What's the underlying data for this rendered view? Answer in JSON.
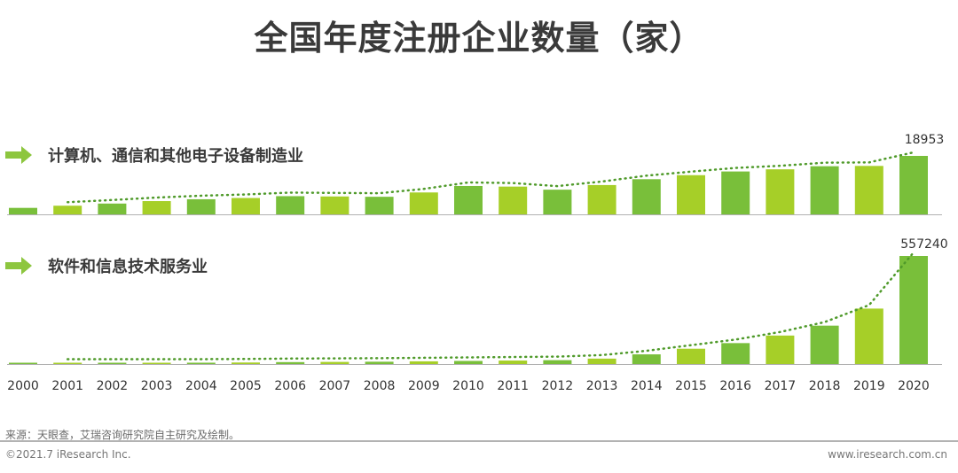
{
  "page": {
    "source_note": "来源：天眼查，艾瑞咨询研究院自主研究及绘制。",
    "copyright": "©2021.7 iResearch Inc.",
    "site_url": "www.iresearch.com.cn"
  },
  "chart_data": {
    "type": "bar",
    "title": "全国年度注册企业数量（家）",
    "categories": [
      "2000",
      "2001",
      "2002",
      "2003",
      "2004",
      "2005",
      "2006",
      "2007",
      "2008",
      "2009",
      "2010",
      "2011",
      "2012",
      "2013",
      "2014",
      "2015",
      "2016",
      "2017",
      "2018",
      "2019",
      "2020"
    ],
    "colors": {
      "bar_light": "#a6cf28",
      "bar_dark": "#79bf3a",
      "arrow": "#8dc63f",
      "trend": "#4f9a2a",
      "axis": "#b0b0b0"
    },
    "series": [
      {
        "name": "计算机、通信和其他电子设备制造业",
        "values": [
          2100,
          2800,
          3500,
          4300,
          4900,
          5300,
          5900,
          5800,
          5700,
          7100,
          9200,
          9000,
          8000,
          9500,
          11400,
          12700,
          13900,
          14600,
          15600,
          15700,
          18953
        ],
        "trend": "dotted",
        "end_label": "18953"
      },
      {
        "name": "软件和信息技术服务业",
        "values": [
          2000,
          4000,
          5000,
          6000,
          7000,
          8000,
          10000,
          11000,
          12000,
          14000,
          16000,
          18000,
          20000,
          28000,
          50000,
          79000,
          108000,
          147000,
          198000,
          286000,
          557240
        ],
        "trend": "dotted",
        "end_label": "557240"
      }
    ]
  }
}
